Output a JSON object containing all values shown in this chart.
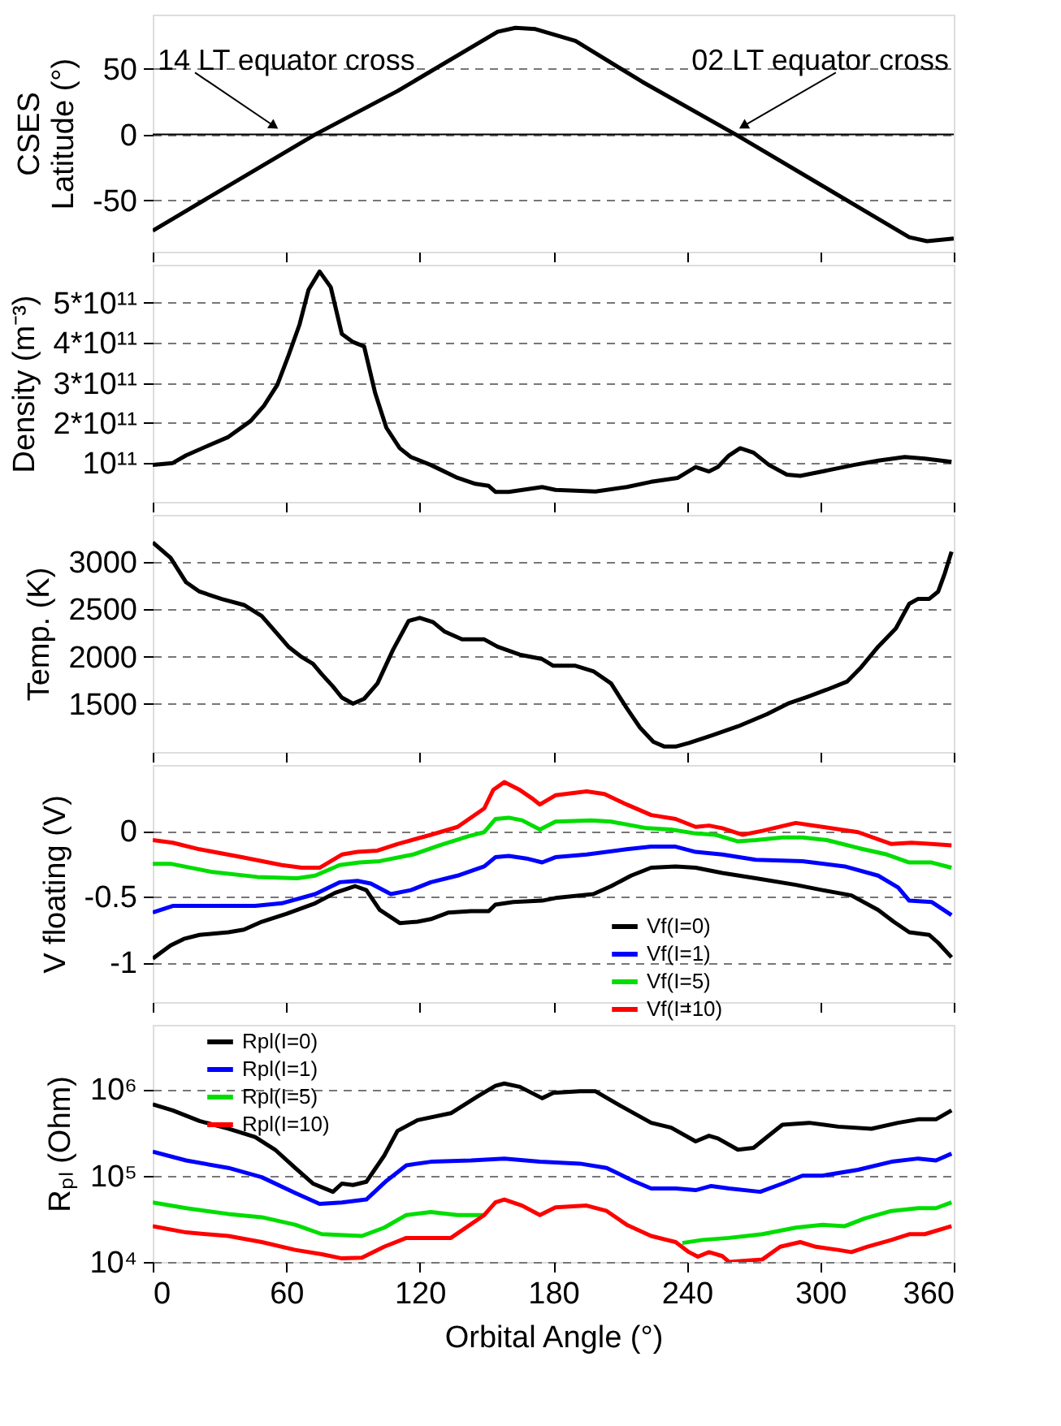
{
  "chart_data": [
    {
      "type": "line",
      "ylabel": "CSES\nLatitude (°)",
      "xlim": [
        0,
        360
      ],
      "xticks": [
        0,
        60,
        120,
        180,
        240,
        300,
        360
      ],
      "ylim": [
        -89,
        91
      ],
      "yticks": [
        -50,
        0,
        50
      ],
      "grid": "y",
      "tick_labels": "y",
      "ref_lines": [
        {
          "axis": "y",
          "value": 0,
          "line_style": "solid",
          "color": "#000000"
        }
      ],
      "annotations": [
        {
          "text": "14 LT equator cross",
          "x": 54,
          "y": 7
        },
        {
          "text": "02 LT equator cross",
          "x": 266,
          "y": 7
        }
      ],
      "series": [
        {
          "color": "#000000",
          "x": [
            0,
            10,
            40,
            73,
            110,
            155,
            163,
            172,
            190,
            220,
            262,
            300,
            340,
            348,
            360
          ],
          "values": [
            -73,
            -63,
            -33,
            0,
            33,
            78,
            81,
            80,
            71,
            40,
            0,
            -38,
            -78,
            -81,
            -79
          ]
        }
      ]
    },
    {
      "type": "line",
      "ylabel": "Density (m⁻³)",
      "xlim": [
        0,
        360
      ],
      "xticks": [
        0,
        60,
        120,
        180,
        240,
        300,
        360
      ],
      "ylim": [
        3000000000.0,
        595000000000.0
      ],
      "yticks": [
        {
          "value": 100000000000.0,
          "label": "10¹¹"
        },
        {
          "value": 200000000000.0,
          "label": "2*10¹¹"
        },
        {
          "value": 300000000000.0,
          "label": "3*10¹¹"
        },
        {
          "value": 400000000000.0,
          "label": "4*10¹¹"
        },
        {
          "value": 500000000000.0,
          "label": "5*10¹¹"
        }
      ],
      "grid": "y",
      "tick_labels": "y",
      "series": [
        {
          "color": "#000000",
          "x": [
            0,
            9,
            15,
            26,
            34,
            44,
            50,
            56,
            61,
            66,
            70,
            75,
            80,
            85,
            90,
            95,
            100,
            105,
            111,
            116,
            125,
            137,
            145,
            151,
            154,
            160,
            175,
            181,
            199,
            213,
            224,
            236,
            244,
            250,
            254,
            259,
            264,
            270,
            277,
            285,
            291,
            301,
            315,
            326,
            338,
            347,
            359
          ],
          "values": [
            95000000000.0,
            100000000000.0,
            119000000000.0,
            146000000000.0,
            165000000000.0,
            205000000000.0,
            243000000000.0,
            295000000000.0,
            368000000000.0,
            446000000000.0,
            532000000000.0,
            578000000000.0,
            539000000000.0,
            422000000000.0,
            402000000000.0,
            391000000000.0,
            274000000000.0,
            188000000000.0,
            137000000000.0,
            115000000000.0,
            95000000000.0,
            63000000000.0,
            48000000000.0,
            43000000000.0,
            28000000000.0,
            28000000000.0,
            40000000000.0,
            33000000000.0,
            29000000000.0,
            40000000000.0,
            53000000000.0,
            63000000000.0,
            90000000000.0,
            79000000000.0,
            90000000000.0,
            119000000000.0,
            137000000000.0,
            126000000000.0,
            95000000000.0,
            71000000000.0,
            68000000000.0,
            79000000000.0,
            95000000000.0,
            106000000000.0,
            115000000000.0,
            111000000000.0,
            103000000000.0
          ]
        }
      ]
    },
    {
      "type": "line",
      "ylabel": "Temp. (K)",
      "xlim": [
        0,
        360
      ],
      "xticks": [
        0,
        60,
        120,
        180,
        240,
        300,
        360
      ],
      "ylim": [
        990,
        3500
      ],
      "yticks": [
        1500,
        2000,
        2500,
        3000
      ],
      "grid": "y",
      "tick_labels": "y",
      "series": [
        {
          "color": "#000000",
          "x": [
            0,
            8,
            15,
            21,
            31,
            41,
            49,
            55,
            61,
            67,
            72,
            76,
            81,
            85,
            90,
            95,
            101,
            108,
            115,
            120,
            126,
            131,
            139,
            149,
            155,
            165,
            175,
            180,
            190,
            198,
            206,
            213,
            219,
            225,
            230,
            235,
            241,
            251,
            263,
            276,
            286,
            294,
            303,
            312,
            318,
            326,
            334,
            340,
            344,
            349,
            353,
            356,
            359
          ],
          "values": [
            3208,
            3045,
            2786,
            2688,
            2610,
            2546,
            2429,
            2267,
            2104,
            1994,
            1923,
            1812,
            1683,
            1566,
            1501,
            1553,
            1715,
            2072,
            2377,
            2410,
            2364,
            2267,
            2182,
            2182,
            2104,
            2020,
            1974,
            1903,
            1903,
            1845,
            1715,
            1455,
            1248,
            1098,
            1047,
            1047,
            1086,
            1163,
            1261,
            1390,
            1507,
            1572,
            1650,
            1734,
            1877,
            2104,
            2299,
            2559,
            2611,
            2611,
            2688,
            2883,
            3110
          ]
        }
      ]
    },
    {
      "type": "line",
      "ylabel": "V floating (V)",
      "xlim": [
        0,
        360
      ],
      "xticks": [
        0,
        60,
        120,
        180,
        240,
        300,
        360
      ],
      "ylim": [
        -1.3,
        0.5
      ],
      "yticks": [
        -1,
        -0.5,
        0
      ],
      "grid": "y",
      "tick_labels": "y",
      "legend": "bottom right",
      "series": [
        {
          "name": "Vf(I=0)",
          "color": "#000000",
          "x": [
            0,
            8,
            14,
            21,
            34,
            41,
            49,
            60,
            73,
            82,
            91,
            96,
            102,
            111,
            119,
            125,
            133,
            143,
            151,
            154,
            162,
            175,
            181,
            198,
            206,
            215,
            224,
            235,
            244,
            256,
            271,
            289,
            301,
            314,
            326,
            333,
            340,
            349,
            353,
            359
          ],
          "values": [
            -0.97,
            -0.87,
            -0.82,
            -0.79,
            -0.77,
            -0.75,
            -0.69,
            -0.63,
            -0.55,
            -0.47,
            -0.42,
            -0.45,
            -0.6,
            -0.7,
            -0.69,
            -0.67,
            -0.62,
            -0.61,
            -0.61,
            -0.56,
            -0.54,
            -0.53,
            -0.51,
            -0.48,
            -0.42,
            -0.34,
            -0.28,
            -0.27,
            -0.28,
            -0.32,
            -0.36,
            -0.41,
            -0.45,
            -0.49,
            -0.6,
            -0.69,
            -0.77,
            -0.79,
            -0.85,
            -0.96
          ]
        },
        {
          "name": "Vf(I=1)",
          "color": "#0000ff",
          "x": [
            0,
            9,
            21,
            46,
            58,
            73,
            84,
            92,
            98,
            107,
            116,
            125,
            137,
            149,
            154,
            160,
            168,
            175,
            181,
            195,
            213,
            224,
            235,
            244,
            256,
            271,
            292,
            311,
            326,
            335,
            340,
            350,
            359
          ],
          "values": [
            -0.62,
            -0.57,
            -0.57,
            -0.57,
            -0.55,
            -0.48,
            -0.39,
            -0.38,
            -0.4,
            -0.48,
            -0.45,
            -0.39,
            -0.34,
            -0.27,
            -0.2,
            -0.19,
            -0.21,
            -0.24,
            -0.2,
            -0.18,
            -0.14,
            -0.12,
            -0.12,
            -0.16,
            -0.18,
            -0.22,
            -0.23,
            -0.27,
            -0.34,
            -0.43,
            -0.53,
            -0.54,
            -0.64
          ]
        },
        {
          "name": "Vf(I=5)",
          "color": "#00dd00",
          "x": [
            0,
            8,
            26,
            47,
            65,
            73,
            84,
            93,
            102,
            117,
            129,
            142,
            149,
            154,
            160,
            166,
            174,
            181,
            197,
            206,
            222,
            233,
            244,
            253,
            263,
            271,
            283,
            292,
            303,
            317,
            330,
            340,
            350,
            359
          ],
          "values": [
            -0.25,
            -0.25,
            -0.31,
            -0.35,
            -0.36,
            -0.34,
            -0.26,
            -0.24,
            -0.23,
            -0.18,
            -0.11,
            -0.04,
            -0.01,
            0.09,
            0.1,
            0.08,
            0.01,
            0.07,
            0.08,
            0.07,
            0.02,
            0.01,
            -0.02,
            -0.03,
            -0.08,
            -0.07,
            -0.05,
            -0.05,
            -0.07,
            -0.13,
            -0.18,
            -0.24,
            -0.24,
            -0.28
          ]
        },
        {
          "name": "Vf(I=10)",
          "color": "#ff0000",
          "x": [
            0,
            9,
            21,
            40,
            58,
            67,
            75,
            85,
            92,
            101,
            110,
            125,
            137,
            149,
            153,
            158,
            165,
            171,
            174,
            181,
            195,
            203,
            213,
            224,
            235,
            244,
            250,
            256,
            265,
            274,
            289,
            301,
            317,
            332,
            341,
            350,
            359
          ],
          "values": [
            -0.07,
            -0.09,
            -0.14,
            -0.2,
            -0.26,
            -0.28,
            -0.28,
            -0.18,
            -0.16,
            -0.15,
            -0.1,
            -0.03,
            0.03,
            0.17,
            0.31,
            0.37,
            0.31,
            0.24,
            0.2,
            0.27,
            0.3,
            0.28,
            0.2,
            0.12,
            0.09,
            0.03,
            0.04,
            0.02,
            -0.03,
            0.0,
            0.06,
            0.03,
            -0.01,
            -0.1,
            -0.09,
            -0.1,
            -0.11
          ]
        }
      ]
    },
    {
      "type": "line",
      "ylabel": "Rₚₗ (Ohm)",
      "xlabel": "Orbital Angle (°)",
      "xlim": [
        0,
        360
      ],
      "xticks": [
        0,
        60,
        120,
        180,
        240,
        300,
        360
      ],
      "ylim": [
        10000.0,
        5600000.0
      ],
      "log": "y",
      "yticks": [
        {
          "value": 10000.0,
          "label": "10⁴"
        },
        {
          "value": 100000.0,
          "label": "10⁵"
        },
        {
          "value": 1000000.0,
          "label": "10⁶"
        }
      ],
      "grid": "y",
      "legend": "top left",
      "series": [
        {
          "name": "Rpl(I=0)",
          "color": "#000000",
          "x": [
            0,
            9,
            21,
            34,
            46,
            55,
            64,
            72,
            81,
            85,
            90,
            96,
            104,
            110,
            119,
            134,
            146,
            154,
            158,
            165,
            175,
            180,
            192,
            199,
            210,
            224,
            233,
            244,
            250,
            254,
            263,
            270,
            276,
            283,
            295,
            308,
            323,
            335,
            344,
            352,
            359
          ],
          "values": [
            670000.0,
            570000.0,
            430000.0,
            350000.0,
            280000.0,
            200000.0,
            123000.0,
            81000.0,
            65000.0,
            81000.0,
            78000.0,
            85000.0,
            170000.0,
            330000.0,
            440000.0,
            530000.0,
            830000.0,
            1100000.0,
            1170000.0,
            1070000.0,
            790000.0,
            910000.0,
            950000.0,
            950000.0,
            650000.0,
            410000.0,
            360000.0,
            250000.0,
            290000.0,
            270000.0,
            200000.0,
            210000.0,
            280000.0,
            390000.0,
            410000.0,
            370000.0,
            350000.0,
            410000.0,
            450000.0,
            450000.0,
            570000.0
          ]
        },
        {
          "name": "Rpl(I=1)",
          "color": "#0000ff",
          "x": [
            0,
            15,
            34,
            49,
            64,
            75,
            85,
            96,
            105,
            114,
            125,
            143,
            158,
            174,
            192,
            204,
            216,
            224,
            235,
            244,
            251,
            259,
            273,
            283,
            292,
            301,
            317,
            332,
            344,
            352,
            359
          ],
          "values": [
            190000.0,
            150000.0,
            123000.0,
            96000.0,
            63000.0,
            47000.0,
            49000.0,
            53000.0,
            87000.0,
            132000.0,
            145000.0,
            150000.0,
            158000.0,
            145000.0,
            138000.0,
            123000.0,
            87000.0,
            71000.0,
            71000.0,
            68000.0,
            76000.0,
            71000.0,
            65000.0,
            81000.0,
            100000.0,
            100000.0,
            117000.0,
            145000.0,
            158000.0,
            150000.0,
            180000.0
          ]
        },
        {
          "name": "Rpl(I=5)",
          "color": "#00dd00",
          "x": [
            0,
            15,
            34,
            49,
            64,
            76,
            94,
            104,
            114,
            125,
            137,
            149,
            154,
            158,
            166,
            174,
            181,
            195,
            204,
            213,
            224,
            238,
            247,
            259,
            274,
            289,
            301,
            311,
            320,
            332,
            344,
            352,
            359
          ],
          "values": [
            49000.0,
            42000.0,
            36000.0,
            33000.0,
            27000.0,
            21000.0,
            20000.0,
            25000.0,
            35000.0,
            38000.0,
            35000.0,
            35000.0,
            null,
            null,
            null,
            null,
            null,
            null,
            null,
            null,
            null,
            16600.0,
            18000.0,
            19000.0,
            21000.0,
            25000.0,
            27000.0,
            26000.0,
            32000.0,
            39000.0,
            42000.0,
            42000.0,
            49000.0
          ]
        },
        {
          "name": "Rpl(I=10)",
          "color": "#ff0000",
          "x": [
            0,
            15,
            34,
            49,
            64,
            76,
            85,
            94,
            104,
            114,
            134,
            149,
            154,
            158,
            166,
            174,
            181,
            195,
            204,
            213,
            224,
            235,
            241,
            245,
            250,
            256,
            259,
            265,
            274,
            282,
            291,
            298,
            308,
            314,
            321,
            332,
            340,
            347,
            359
          ],
          "values": [
            26000.0,
            22000.0,
            20000.0,
            17000.0,
            13800.0,
            12300.0,
            11000.0,
            11200.0,
            15000.0,
            19000.0,
            19000.0,
            35000.0,
            49000.0,
            53000.0,
            45000.0,
            35000.0,
            43000.0,
            45000.0,
            39000.0,
            27000.0,
            20000.0,
            17000.0,
            13000.0,
            11500.0,
            13000.0,
            11700.0,
            10000.0,
            10300.0,
            10700.0,
            15000.0,
            17000.0,
            15000.0,
            13800.0,
            13000.0,
            15000.0,
            18000.0,
            21000.0,
            21000.0,
            26000.0
          ]
        }
      ]
    }
  ]
}
